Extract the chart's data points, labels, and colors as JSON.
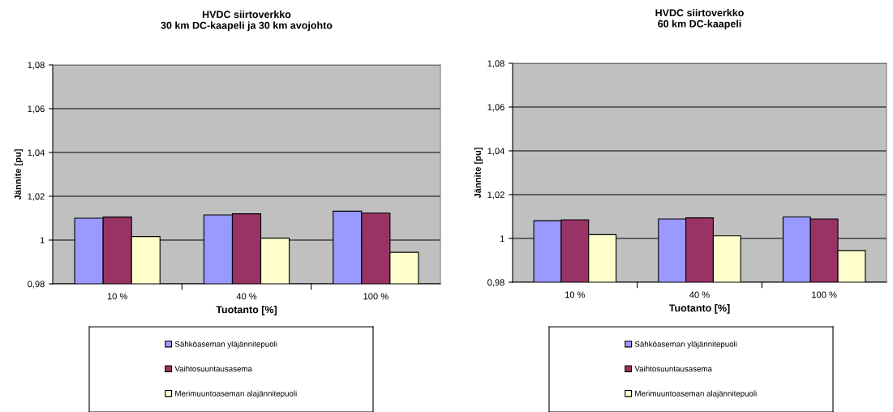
{
  "chart_data": [
    {
      "type": "bar",
      "title": "HVDC siirtoverkko\n30 km DC-kaapeli ja 30 km avojohto",
      "xlabel": "Tuotanto [%]",
      "ylabel": "Jännite [pu]",
      "categories": [
        "10 %",
        "40 %",
        "100 %"
      ],
      "series": [
        {
          "name": "Sähköaseman yläjännitepuoli",
          "color": "#9999ff",
          "values": [
            1.01,
            1.0115,
            1.0132
          ]
        },
        {
          "name": "Vaihtosuuntausasema",
          "color": "#993366",
          "values": [
            1.0105,
            1.012,
            1.0123
          ]
        },
        {
          "name": "Merimuuntoaseman alajännitepuoli",
          "color": "#ffffcc",
          "values": [
            1.0016,
            1.0009,
            0.9944
          ]
        }
      ],
      "ylim": [
        0.98,
        1.08
      ],
      "yticks": [
        {
          "value": 0.98,
          "label": "0,98"
        },
        1,
        {
          "value": 1.02,
          "label": "1,02"
        },
        {
          "value": 1.04,
          "label": "1,04"
        },
        {
          "value": 1.06,
          "label": "1,06"
        },
        {
          "value": 1.08,
          "label": "1,08"
        }
      ],
      "grid": "y",
      "legend": "bottom"
    },
    {
      "type": "bar",
      "title": "HVDC siirtoverkko\n60 km DC-kaapeli",
      "xlabel": "Tuotanto [%]",
      "ylabel": "Jännite [pu]",
      "categories": [
        "10 %",
        "40 %",
        "100 %"
      ],
      "series": [
        {
          "name": "Sähköaseman yläjännitepuoli",
          "color": "#9999ff",
          "values": [
            1.0081,
            1.0089,
            1.0098
          ]
        },
        {
          "name": "Vaihtosuuntausasema",
          "color": "#993366",
          "values": [
            1.0085,
            1.0094,
            1.0089
          ]
        },
        {
          "name": "Merimuuntoaseman alajännitepuoli",
          "color": "#ffffcc",
          "values": [
            1.0017,
            1.0012,
            0.9945
          ]
        }
      ],
      "ylim": [
        0.98,
        1.08
      ],
      "yticks": [
        {
          "value": 0.98,
          "label": "0,98"
        },
        1,
        {
          "value": 1.02,
          "label": "1,02"
        },
        {
          "value": 1.04,
          "label": "1,04"
        },
        {
          "value": 1.06,
          "label": "1,06"
        },
        {
          "value": 1.08,
          "label": "1,08"
        }
      ],
      "grid": "y",
      "legend": "bottom"
    }
  ]
}
